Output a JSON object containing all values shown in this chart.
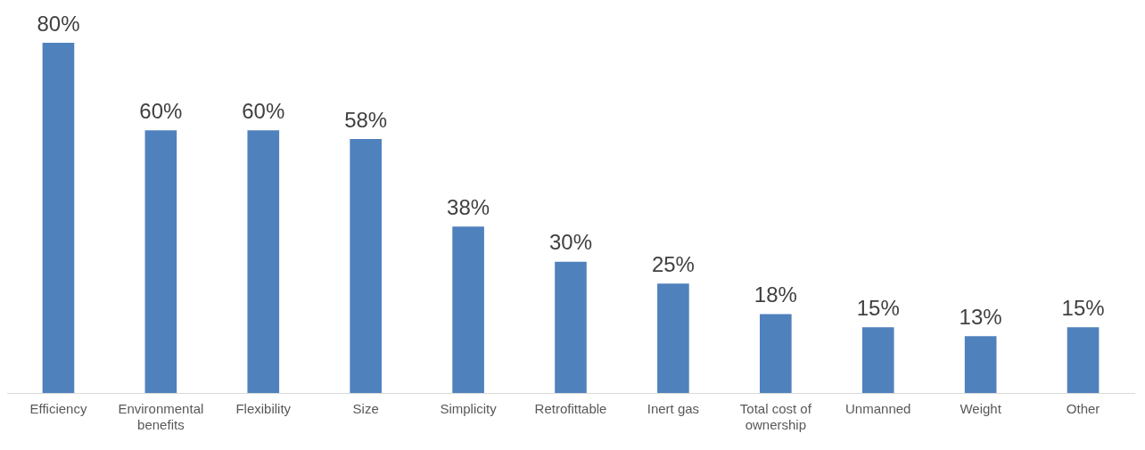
{
  "chart_data": {
    "type": "bar",
    "categories": [
      "Efficiency",
      "Environmental benefits",
      "Flexibility",
      "Size",
      "Simplicity",
      "Retrofittable",
      "Inert gas",
      "Total cost of ownership",
      "Unmanned",
      "Weight",
      "Other"
    ],
    "values": [
      80,
      60,
      60,
      58,
      38,
      30,
      25,
      18,
      15,
      13,
      15
    ],
    "value_labels": [
      "80%",
      "60%",
      "60%",
      "58%",
      "38%",
      "30%",
      "25%",
      "18%",
      "15%",
      "13%",
      "15%"
    ],
    "color": "#4f81bd",
    "grid": false,
    "legend": false
  }
}
